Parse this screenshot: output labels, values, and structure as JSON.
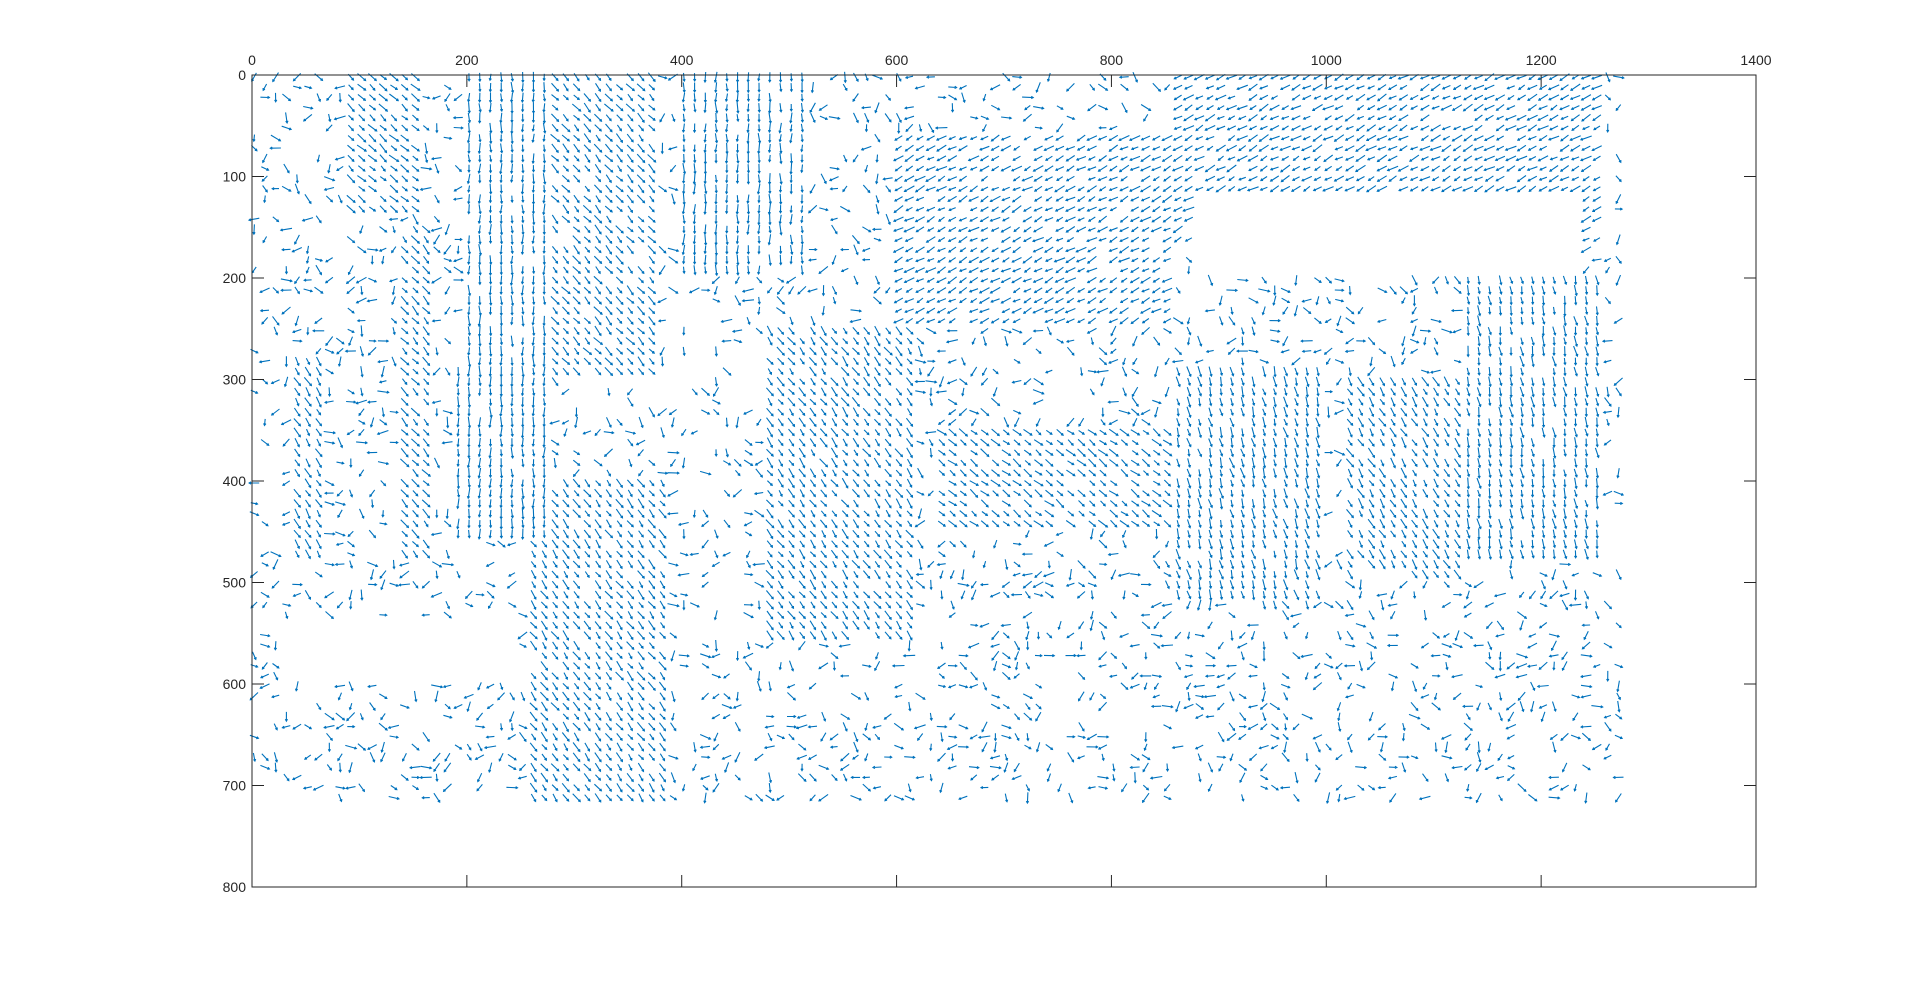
{
  "chart_data": {
    "type": "quiver",
    "title": "",
    "xlabel": "",
    "ylabel": "",
    "xlim": [
      0,
      1400
    ],
    "ylim": [
      0,
      800
    ],
    "y_reversed": true,
    "x_axis_location": "top",
    "box": true,
    "grid": false,
    "legend": "none",
    "xticks": [
      0,
      200,
      400,
      600,
      800,
      1000,
      1200,
      1400
    ],
    "yticks": [
      0,
      100,
      200,
      300,
      400,
      500,
      600,
      700,
      800
    ],
    "xtick_labels": [
      "0",
      "200",
      "400",
      "600",
      "800",
      "1000",
      "1200",
      "1400"
    ],
    "ytick_labels": [
      "0",
      "100",
      "200",
      "300",
      "400",
      "500",
      "600",
      "700",
      "800"
    ],
    "series_color": "#0072BD",
    "field": {
      "x_range": [
        0,
        1275
      ],
      "y_range": [
        0,
        715
      ],
      "sample_spacing": 10,
      "arrow_length": 9,
      "regions": [
        {
          "x": [
            90,
            160
          ],
          "y": [
            0,
            140
          ],
          "angle": 45,
          "style": "dense"
        },
        {
          "x": [
            200,
            280
          ],
          "y": [
            0,
            460
          ],
          "angle": 90,
          "style": "dense"
        },
        {
          "x": [
            280,
            380
          ],
          "y": [
            0,
            300
          ],
          "angle": 50,
          "style": "dense"
        },
        {
          "x": [
            400,
            520
          ],
          "y": [
            0,
            200
          ],
          "angle": 90,
          "style": "dense"
        },
        {
          "x": [
            140,
            170
          ],
          "y": [
            150,
            480
          ],
          "angle": 50,
          "style": "dense"
        },
        {
          "x": [
            40,
            70
          ],
          "y": [
            280,
            480
          ],
          "angle": 60,
          "style": "dense"
        },
        {
          "x": [
            190,
            270
          ],
          "y": [
            290,
            460
          ],
          "angle": 90,
          "style": "dense"
        },
        {
          "x": [
            260,
            390
          ],
          "y": [
            400,
            715
          ],
          "angle": 55,
          "style": "dense"
        },
        {
          "x": [
            860,
            1000
          ],
          "y": [
            290,
            520
          ],
          "angle": 75,
          "style": "dense"
        },
        {
          "x": [
            1020,
            1130
          ],
          "y": [
            300,
            500
          ],
          "angle": 60,
          "style": "dense"
        },
        {
          "x": [
            1130,
            1260
          ],
          "y": [
            200,
            480
          ],
          "angle": 80,
          "style": "dense"
        },
        {
          "x": [
            600,
            860
          ],
          "y": [
            60,
            250
          ],
          "angle": 150,
          "style": "dense"
        },
        {
          "x": [
            860,
            1260
          ],
          "y": [
            0,
            170
          ],
          "angle": 150,
          "style": "dense"
        },
        {
          "x": [
            480,
            620
          ],
          "y": [
            250,
            560
          ],
          "angle": 55,
          "style": "dense"
        },
        {
          "x": [
            640,
            860
          ],
          "y": [
            350,
            450
          ],
          "angle": 40,
          "style": "dense"
        },
        {
          "x": [
            0,
            1275
          ],
          "y": [
            0,
            715
          ],
          "angle": null,
          "style": "sparse"
        }
      ],
      "empty_regions": [
        {
          "x": [
            0,
            1275
          ],
          "y": [
            715,
            800
          ]
        },
        {
          "x": [
            1275,
            1400
          ],
          "y": [
            0,
            800
          ]
        },
        {
          "x": [
            880,
            1240
          ],
          "y": [
            120,
            200
          ]
        },
        {
          "x": [
            30,
            250
          ],
          "y": [
            540,
            600
          ]
        }
      ]
    }
  }
}
